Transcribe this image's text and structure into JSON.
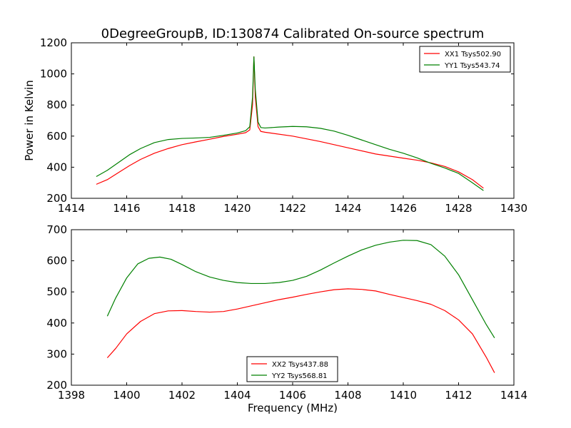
{
  "chart_data": [
    {
      "type": "line",
      "title": "0DegreeGroupB, ID:130874 Calibrated On-source spectrum",
      "xlabel": "",
      "ylabel": "Power in Kelvin",
      "xlim": [
        1414,
        1430
      ],
      "ylim": [
        200,
        1200
      ],
      "xticks": [
        1414,
        1416,
        1418,
        1420,
        1422,
        1424,
        1426,
        1428,
        1430
      ],
      "yticks": [
        200,
        400,
        600,
        800,
        1000,
        1200
      ],
      "grid": false,
      "legend_position": "top-right",
      "series": [
        {
          "name": "XX1 Tsys502.90",
          "color": "#ff0000",
          "points": [
            [
              1414.9,
              290
            ],
            [
              1415.3,
              320
            ],
            [
              1415.7,
              365
            ],
            [
              1416.1,
              410
            ],
            [
              1416.5,
              450
            ],
            [
              1417,
              490
            ],
            [
              1417.5,
              520
            ],
            [
              1418,
              545
            ],
            [
              1418.5,
              563
            ],
            [
              1419,
              580
            ],
            [
              1419.5,
              598
            ],
            [
              1420,
              612
            ],
            [
              1420.3,
              622
            ],
            [
              1420.45,
              640
            ],
            [
              1420.55,
              800
            ],
            [
              1420.6,
              1110
            ],
            [
              1420.65,
              850
            ],
            [
              1420.75,
              660
            ],
            [
              1420.85,
              630
            ],
            [
              1421,
              625
            ],
            [
              1422,
              600
            ],
            [
              1423,
              565
            ],
            [
              1424,
              525
            ],
            [
              1425,
              485
            ],
            [
              1426,
              458
            ],
            [
              1426.5,
              445
            ],
            [
              1427,
              428
            ],
            [
              1427.5,
              405
            ],
            [
              1428,
              370
            ],
            [
              1428.5,
              320
            ],
            [
              1428.9,
              265
            ]
          ]
        },
        {
          "name": "YY1 Tsys543.74",
          "color": "#008000",
          "points": [
            [
              1414.9,
              340
            ],
            [
              1415.3,
              380
            ],
            [
              1415.7,
              430
            ],
            [
              1416.1,
              480
            ],
            [
              1416.5,
              520
            ],
            [
              1417,
              558
            ],
            [
              1417.5,
              578
            ],
            [
              1418,
              585
            ],
            [
              1418.5,
              588
            ],
            [
              1419,
              592
            ],
            [
              1419.5,
              605
            ],
            [
              1420,
              620
            ],
            [
              1420.3,
              635
            ],
            [
              1420.45,
              660
            ],
            [
              1420.55,
              850
            ],
            [
              1420.6,
              1110
            ],
            [
              1420.65,
              900
            ],
            [
              1420.75,
              690
            ],
            [
              1420.85,
              655
            ],
            [
              1421,
              652
            ],
            [
              1421.5,
              658
            ],
            [
              1422,
              662
            ],
            [
              1422.5,
              660
            ],
            [
              1423,
              650
            ],
            [
              1423.5,
              632
            ],
            [
              1424,
              605
            ],
            [
              1424.5,
              575
            ],
            [
              1425,
              545
            ],
            [
              1425.5,
              515
            ],
            [
              1426,
              490
            ],
            [
              1426.5,
              460
            ],
            [
              1427,
              425
            ],
            [
              1427.5,
              395
            ],
            [
              1428,
              360
            ],
            [
              1428.5,
              300
            ],
            [
              1428.9,
              250
            ]
          ]
        }
      ]
    },
    {
      "type": "line",
      "title": "",
      "xlabel": "Frequency (MHz)",
      "ylabel": "",
      "xlim": [
        1398,
        1414
      ],
      "ylim": [
        200,
        700
      ],
      "xticks": [
        1398,
        1400,
        1402,
        1404,
        1406,
        1408,
        1410,
        1412,
        1414
      ],
      "yticks": [
        200,
        300,
        400,
        500,
        600,
        700
      ],
      "grid": false,
      "legend_position": "bottom-center",
      "series": [
        {
          "name": "XX2 Tsys437.88",
          "color": "#ff0000",
          "points": [
            [
              1399.3,
              288
            ],
            [
              1399.6,
              318
            ],
            [
              1400,
              365
            ],
            [
              1400.5,
              405
            ],
            [
              1401,
              430
            ],
            [
              1401.5,
              439
            ],
            [
              1402,
              440
            ],
            [
              1402.5,
              437
            ],
            [
              1403,
              435
            ],
            [
              1403.5,
              437
            ],
            [
              1404,
              445
            ],
            [
              1404.5,
              455
            ],
            [
              1405,
              465
            ],
            [
              1405.5,
              475
            ],
            [
              1406,
              483
            ],
            [
              1406.5,
              492
            ],
            [
              1407,
              500
            ],
            [
              1407.5,
              507
            ],
            [
              1408,
              510
            ],
            [
              1408.5,
              508
            ],
            [
              1409,
              503
            ],
            [
              1409.5,
              492
            ],
            [
              1410,
              482
            ],
            [
              1410.5,
              472
            ],
            [
              1411,
              460
            ],
            [
              1411.5,
              440
            ],
            [
              1412,
              410
            ],
            [
              1412.5,
              365
            ],
            [
              1413,
              290
            ],
            [
              1413.3,
              240
            ]
          ]
        },
        {
          "name": "YY2 Tsys568.81",
          "color": "#008000",
          "points": [
            [
              1399.3,
              422
            ],
            [
              1399.6,
              480
            ],
            [
              1400,
              545
            ],
            [
              1400.4,
              590
            ],
            [
              1400.8,
              608
            ],
            [
              1401.2,
              612
            ],
            [
              1401.6,
              605
            ],
            [
              1402,
              588
            ],
            [
              1402.5,
              565
            ],
            [
              1403,
              548
            ],
            [
              1403.5,
              537
            ],
            [
              1404,
              530
            ],
            [
              1404.5,
              527
            ],
            [
              1405,
              527
            ],
            [
              1405.5,
              530
            ],
            [
              1406,
              537
            ],
            [
              1406.5,
              550
            ],
            [
              1407,
              570
            ],
            [
              1407.5,
              593
            ],
            [
              1408,
              615
            ],
            [
              1408.5,
              635
            ],
            [
              1409,
              650
            ],
            [
              1409.5,
              660
            ],
            [
              1410,
              666
            ],
            [
              1410.5,
              665
            ],
            [
              1411,
              652
            ],
            [
              1411.5,
              615
            ],
            [
              1412,
              555
            ],
            [
              1412.5,
              475
            ],
            [
              1413,
              395
            ],
            [
              1413.3,
              352
            ]
          ]
        }
      ]
    }
  ]
}
